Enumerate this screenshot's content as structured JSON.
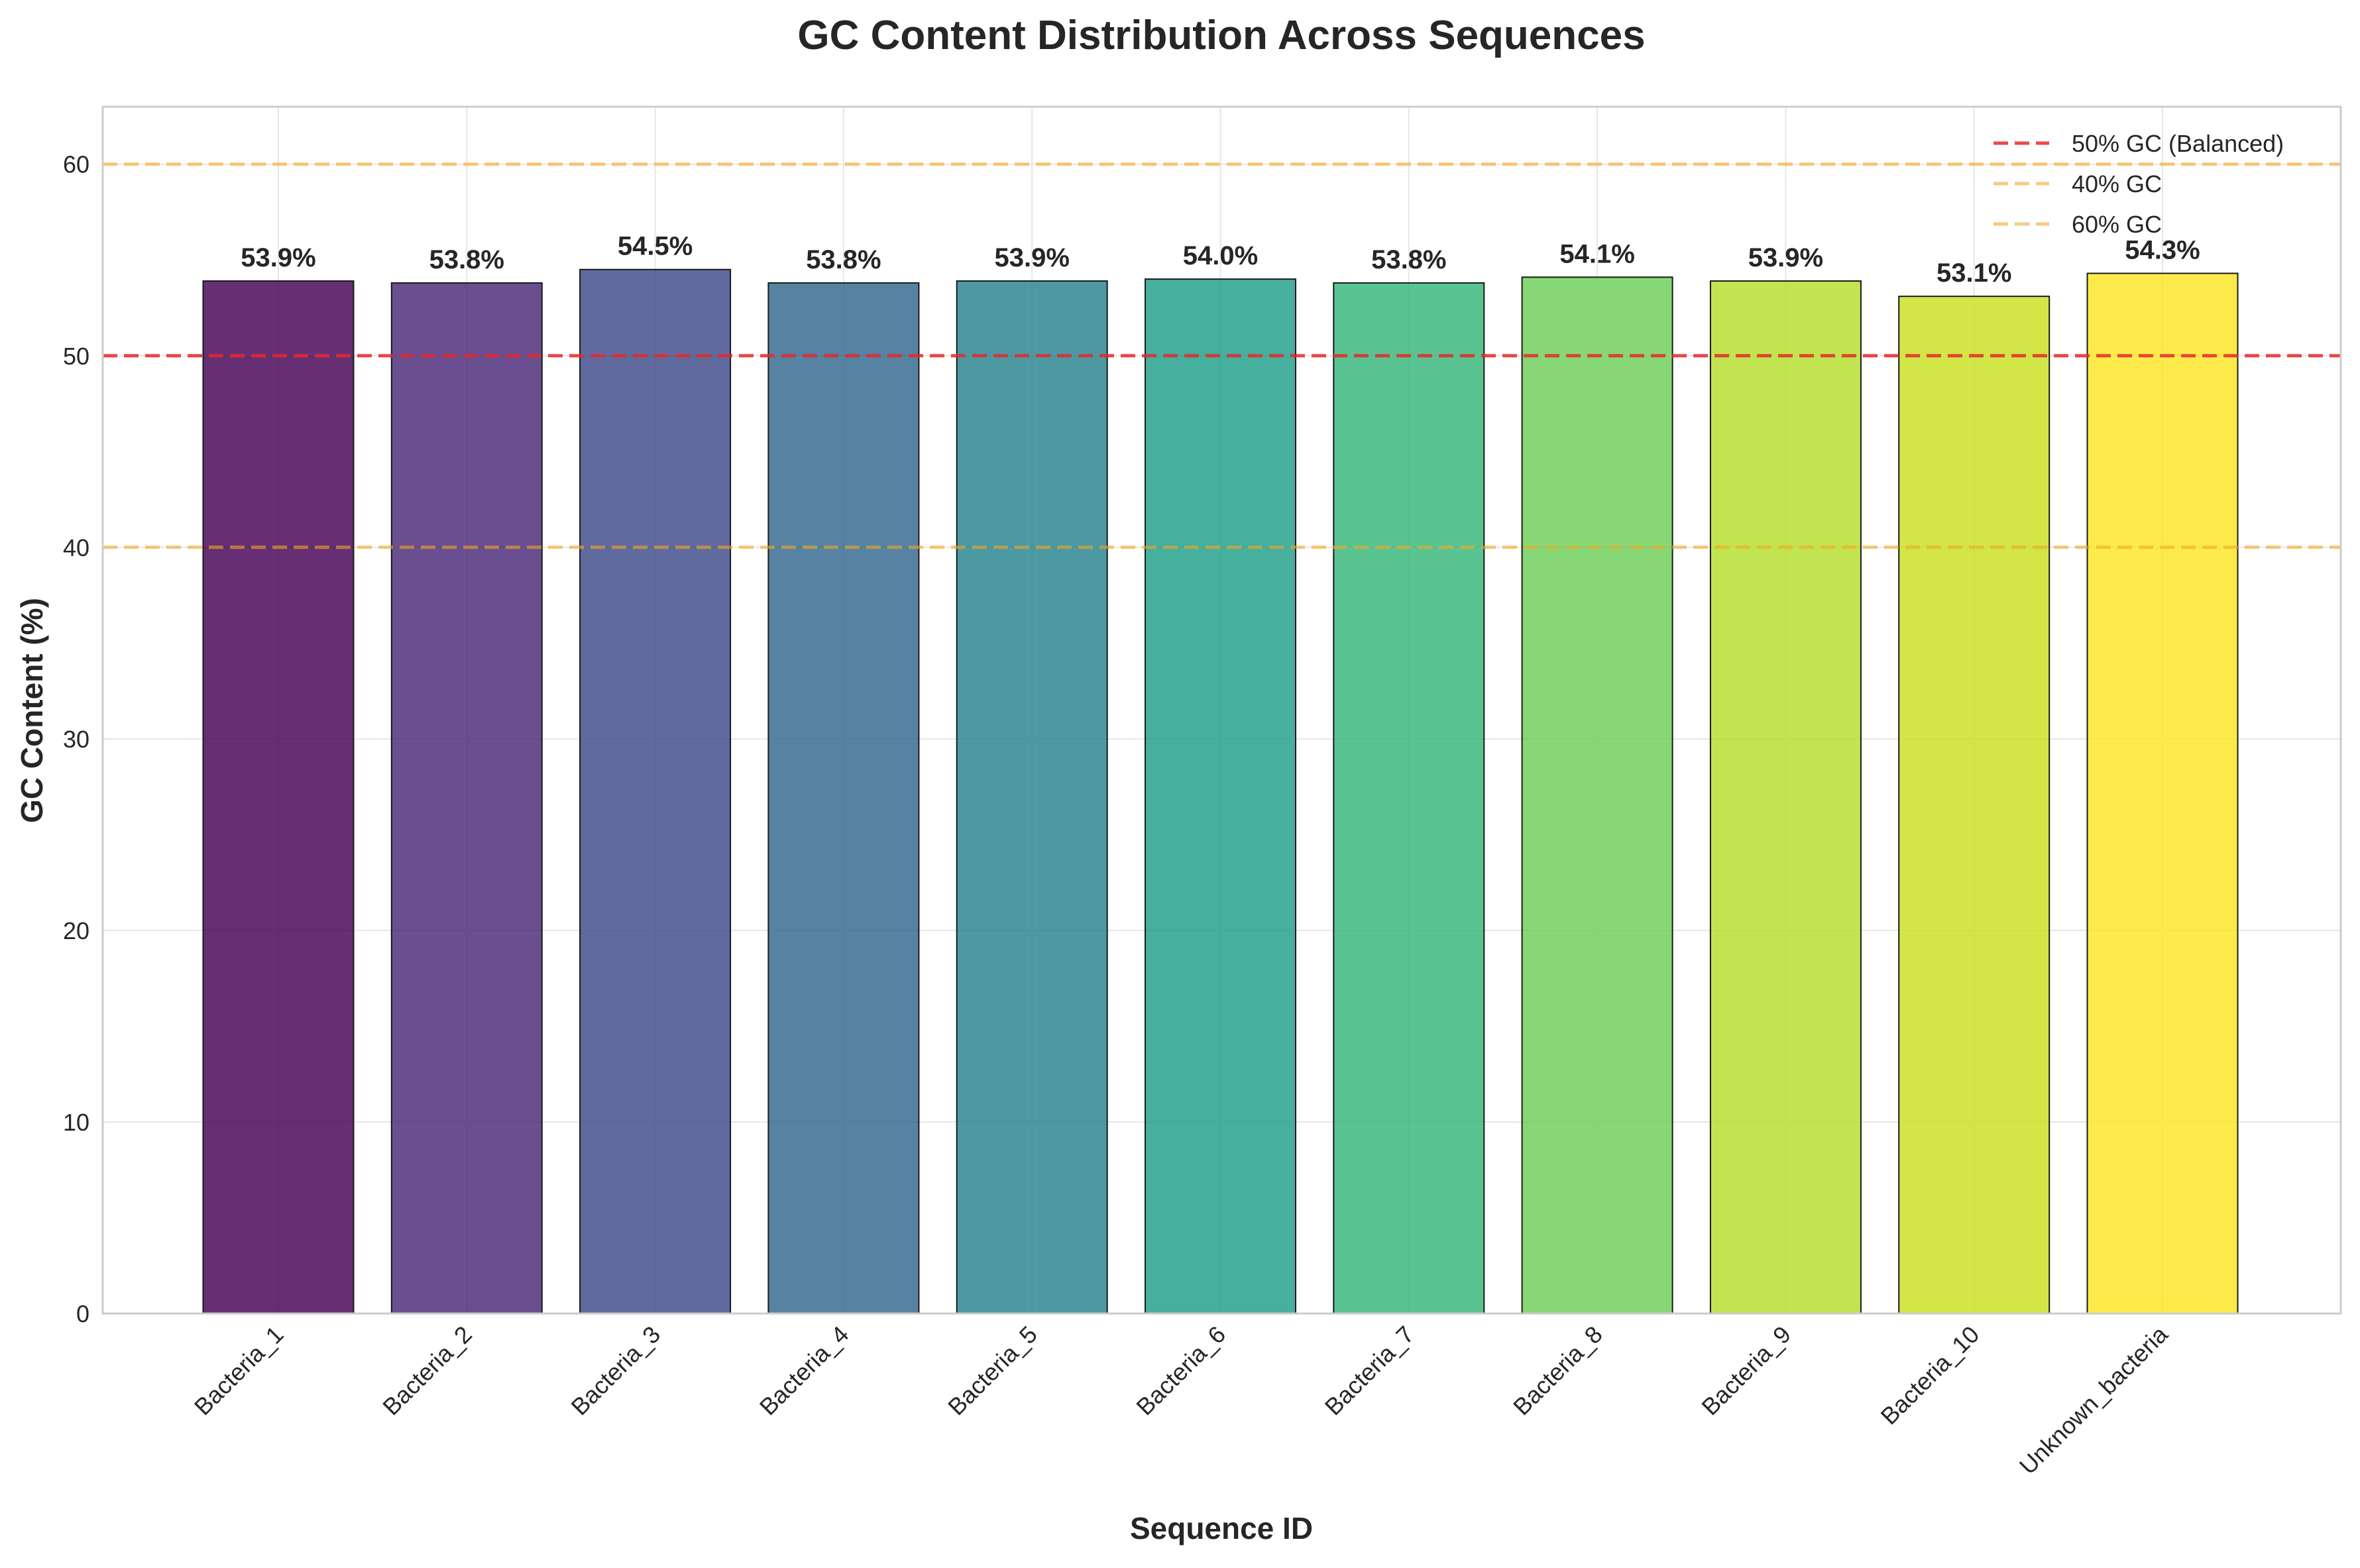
{
  "chart_data": {
    "type": "bar",
    "title": "GC Content Distribution Across Sequences",
    "xlabel": "Sequence ID",
    "ylabel": "GC Content (%)",
    "ylim": [
      0,
      63
    ],
    "yticks": [
      0,
      10,
      20,
      30,
      40,
      50,
      60
    ],
    "grid": true,
    "categories": [
      "Bacteria_1",
      "Bacteria_2",
      "Bacteria_3",
      "Bacteria_4",
      "Bacteria_5",
      "Bacteria_6",
      "Bacteria_7",
      "Bacteria_8",
      "Bacteria_9",
      "Bacteria_10",
      "Unknown_bacteria"
    ],
    "values": [
      53.9,
      53.8,
      54.5,
      53.8,
      53.9,
      54.0,
      53.8,
      54.1,
      53.9,
      53.1,
      54.3
    ],
    "value_labels": [
      "53.9%",
      "53.8%",
      "54.5%",
      "53.8%",
      "53.9%",
      "54.0%",
      "53.8%",
      "54.1%",
      "53.9%",
      "53.1%",
      "54.3%"
    ],
    "bar_colors": [
      "#440154",
      "#482878",
      "#3e4989",
      "#31688e",
      "#26828e",
      "#1f9e89",
      "#35b779",
      "#6ece58",
      "#b5de2b",
      "#c8e020",
      "#fde725"
    ],
    "reference_lines": [
      {
        "label": "50% GC (Balanced)",
        "y": 50,
        "color": "#e8282a",
        "style": "dashed"
      },
      {
        "label": "40% GC",
        "y": 40,
        "color": "#f5a623",
        "style": "dashed"
      },
      {
        "label": "60% GC",
        "y": 60,
        "color": "#f5a623",
        "style": "dashed"
      }
    ],
    "legend_position": "top-right"
  }
}
